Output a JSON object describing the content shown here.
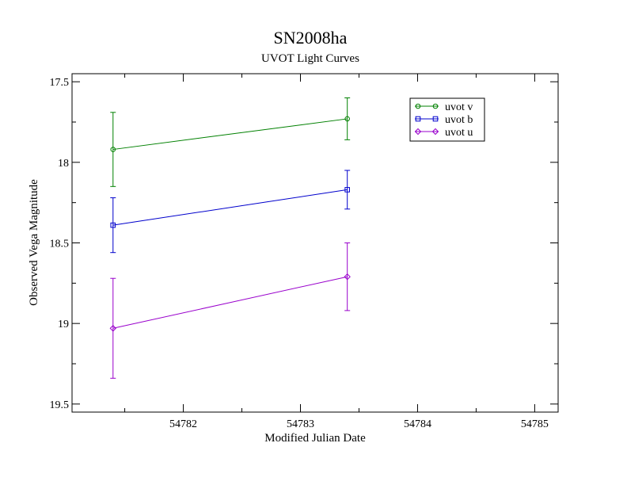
{
  "chart_data": {
    "type": "line",
    "title": "SN2008ha",
    "subtitle": "UVOT Light Curves",
    "xlabel": "Modified Julian Date",
    "ylabel": "Observed Vega Magnitude",
    "xlim": [
      54781.05,
      54785.2
    ],
    "ylim": [
      17.45,
      19.55
    ],
    "y_inverted": true,
    "x_ticks": [
      54782,
      54783,
      54784,
      54785
    ],
    "x_tick_labels": [
      "54782",
      "54783",
      "54784",
      "54785"
    ],
    "y_ticks": [
      17.5,
      18,
      18.5,
      19,
      19.5
    ],
    "y_tick_labels": [
      "17.5",
      "18",
      "18.5",
      "19",
      "19.5"
    ],
    "grid": false,
    "legend": "top-right",
    "series": [
      {
        "name": "uvot v",
        "color": "#008000",
        "marker": "circle",
        "x": [
          54781.4,
          54783.4
        ],
        "y": [
          17.92,
          17.73
        ],
        "err": [
          0.23,
          0.13
        ]
      },
      {
        "name": "uvot b",
        "color": "#0000cc",
        "marker": "square",
        "x": [
          54781.4,
          54783.4
        ],
        "y": [
          18.39,
          18.17
        ],
        "err": [
          0.17,
          0.12
        ]
      },
      {
        "name": "uvot u",
        "color": "#9900cc",
        "marker": "diamond",
        "x": [
          54781.4,
          54783.4
        ],
        "y": [
          19.03,
          18.71
        ],
        "err": [
          0.31,
          0.21
        ]
      }
    ]
  }
}
